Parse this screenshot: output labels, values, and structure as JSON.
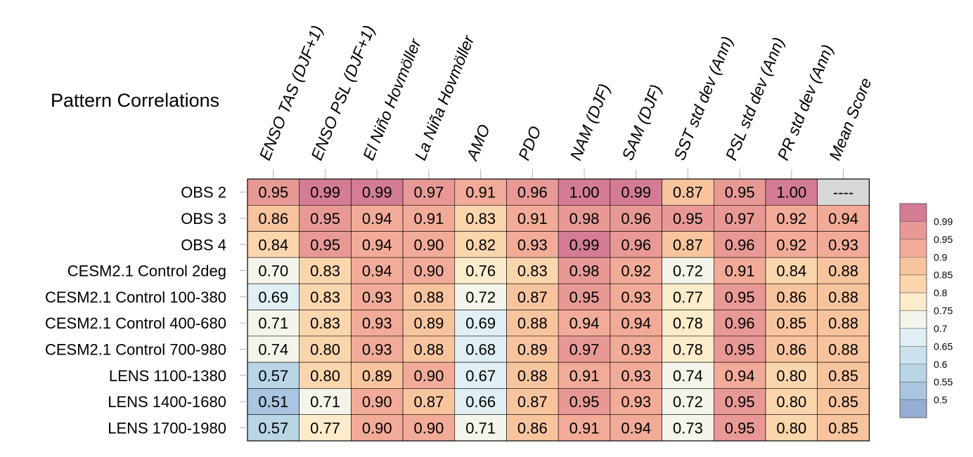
{
  "chart_data": {
    "type": "heatmap",
    "title": "Pattern Correlations",
    "columns": [
      "ENSO TAS (DJF+1)",
      "ENSO PSL (DJF+1)",
      "El Niño Hovmöller",
      "La Niña Hovmöller",
      "AMO",
      "PDO",
      "NAM (DJF)",
      "SAM (DJF)",
      "SST std dev (Ann)",
      "PSL std dev (Ann)",
      "PR std dev (Ann)",
      "Mean Score"
    ],
    "rows": [
      "OBS 2",
      "OBS 3",
      "OBS 4",
      "CESM2.1 Control 2deg",
      "CESM2.1 Control 100-380",
      "CESM2.1 Control 400-680",
      "CESM2.1 Control 700-980",
      "LENS 1100-1380",
      "LENS 1400-1680",
      "LENS 1700-1980"
    ],
    "values": [
      [
        0.95,
        0.99,
        0.99,
        0.97,
        0.91,
        0.96,
        1.0,
        0.99,
        0.87,
        0.95,
        1.0,
        null
      ],
      [
        0.86,
        0.95,
        0.94,
        0.91,
        0.83,
        0.91,
        0.98,
        0.96,
        0.95,
        0.97,
        0.92,
        0.94
      ],
      [
        0.84,
        0.95,
        0.94,
        0.9,
        0.82,
        0.93,
        0.99,
        0.96,
        0.87,
        0.96,
        0.92,
        0.93
      ],
      [
        0.7,
        0.83,
        0.94,
        0.9,
        0.76,
        0.83,
        0.98,
        0.92,
        0.72,
        0.91,
        0.84,
        0.88
      ],
      [
        0.69,
        0.83,
        0.93,
        0.88,
        0.72,
        0.87,
        0.95,
        0.93,
        0.77,
        0.95,
        0.86,
        0.88
      ],
      [
        0.71,
        0.83,
        0.93,
        0.89,
        0.69,
        0.88,
        0.94,
        0.94,
        0.78,
        0.96,
        0.85,
        0.88
      ],
      [
        0.74,
        0.8,
        0.93,
        0.88,
        0.68,
        0.89,
        0.97,
        0.93,
        0.78,
        0.95,
        0.86,
        0.88
      ],
      [
        0.57,
        0.8,
        0.89,
        0.9,
        0.67,
        0.88,
        0.91,
        0.93,
        0.74,
        0.94,
        0.8,
        0.85
      ],
      [
        0.51,
        0.71,
        0.9,
        0.87,
        0.66,
        0.87,
        0.95,
        0.93,
        0.72,
        0.95,
        0.8,
        0.85
      ],
      [
        0.57,
        0.77,
        0.9,
        0.9,
        0.71,
        0.86,
        0.91,
        0.94,
        0.73,
        0.95,
        0.8,
        0.85
      ]
    ],
    "missing_label": "----",
    "missing_color": "#d8d8d8",
    "value_format_decimals": 2,
    "legend": {
      "placement": "right",
      "tick_labels": [
        "0.99",
        "0.95",
        "0.9",
        "0.85",
        "0.8",
        "0.75",
        "0.7",
        "0.65",
        "0.6",
        "0.55",
        "0.5"
      ],
      "bins": [
        {
          "min": 0.99,
          "color": "#d37c93"
        },
        {
          "min": 0.95,
          "color": "#e89996"
        },
        {
          "min": 0.9,
          "color": "#f2ab98"
        },
        {
          "min": 0.85,
          "color": "#f8c49e"
        },
        {
          "min": 0.8,
          "color": "#fbd5ac"
        },
        {
          "min": 0.75,
          "color": "#fceccb"
        },
        {
          "min": 0.7,
          "color": "#f5f4ea"
        },
        {
          "min": 0.65,
          "color": "#e0eff4"
        },
        {
          "min": 0.6,
          "color": "#cbe3ee"
        },
        {
          "min": 0.55,
          "color": "#b9d5e6"
        },
        {
          "min": 0.5,
          "color": "#a9c5df"
        },
        {
          "min": -1.0,
          "color": "#97aed4"
        }
      ]
    }
  }
}
